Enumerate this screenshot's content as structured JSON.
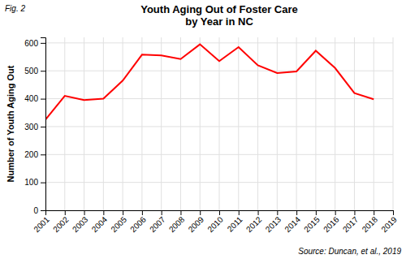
{
  "chart_data": {
    "type": "line",
    "title": "Youth Aging Out of Foster Care\nby Year in NC",
    "annotations": [
      "Fig. 2",
      "Source: Duncan, et al., 2019"
    ],
    "ylabel": "Number of Youth Aging Out",
    "x": [
      2001,
      2002,
      2003,
      2004,
      2005,
      2006,
      2007,
      2008,
      2009,
      2010,
      2011,
      2012,
      2013,
      2014,
      2015,
      2016,
      2017,
      2018,
      2019
    ],
    "values": [
      325,
      410,
      395,
      400,
      465,
      558,
      555,
      542,
      595,
      535,
      585,
      520,
      492,
      498,
      572,
      510,
      420,
      398,
      null
    ],
    "color": "#ff0000",
    "xlim": [
      2001,
      2019
    ],
    "xticks": [
      2001,
      2002,
      2003,
      2004,
      2005,
      2006,
      2007,
      2008,
      2009,
      2010,
      2011,
      2012,
      2013,
      2014,
      2015,
      2016,
      2017,
      2018,
      2019
    ],
    "ylim": [
      0,
      620
    ],
    "yticks": [
      0,
      100,
      200,
      300,
      400,
      500,
      600
    ],
    "grid": true
  }
}
